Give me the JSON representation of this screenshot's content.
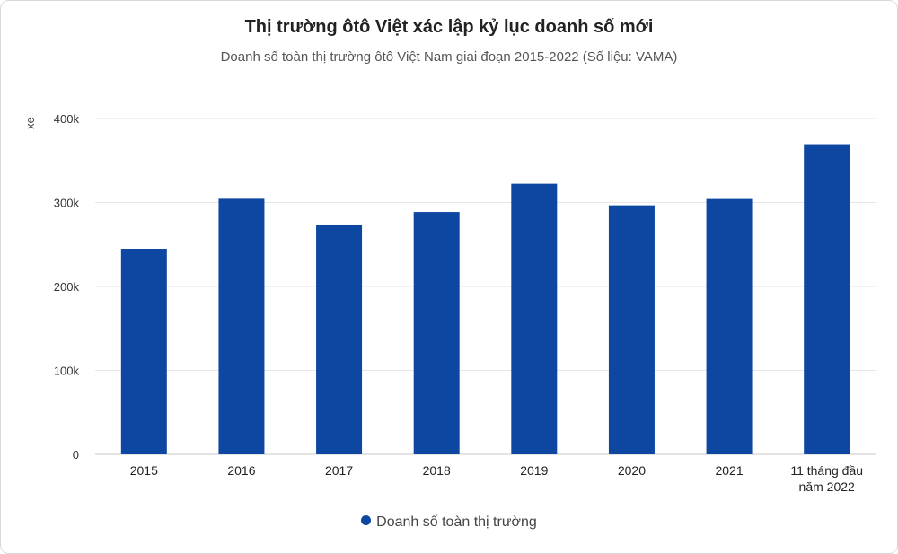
{
  "chart_data": {
    "type": "bar",
    "title": "Thị trường ôtô Việt xác lập kỷ lục doanh số mới",
    "subtitle": "Doanh số toàn thị trường ôtô Việt Nam giai đoạn 2015-2022 (Số liệu: VAMA)",
    "ylabel": "xe",
    "xlabel": "",
    "ylim": [
      0,
      400000
    ],
    "yticks": [
      0,
      100000,
      200000,
      300000,
      400000
    ],
    "ytick_labels": [
      "0",
      "100k",
      "200k",
      "300k",
      "400k"
    ],
    "categories": [
      [
        "2015"
      ],
      [
        "2016"
      ],
      [
        "2017"
      ],
      [
        "2018"
      ],
      [
        "2019"
      ],
      [
        "2020"
      ],
      [
        "2021"
      ],
      [
        "11 tháng đầu",
        "năm 2022"
      ]
    ],
    "series": [
      {
        "name": "Doanh số toàn thị trường",
        "color": "#0d47a1",
        "values": [
          244914,
          304427,
          272750,
          288683,
          322322,
          296634,
          304149,
          369470
        ]
      }
    ],
    "grid": true,
    "legend": "bottom-center"
  }
}
